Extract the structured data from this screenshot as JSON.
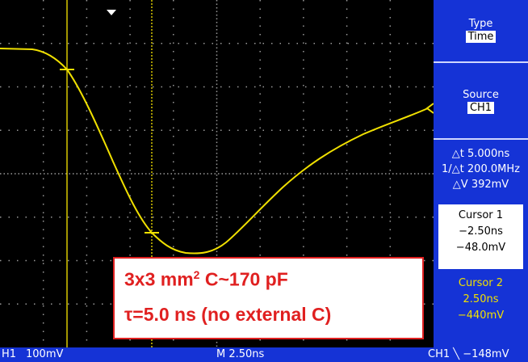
{
  "status_bar": {
    "channel": "H1",
    "scale": "100mV",
    "timebase": "M 2.50ns",
    "trigger": "CH1 ╲ −148mV"
  },
  "menu": {
    "type": {
      "label": "Type",
      "value": "Time"
    },
    "source": {
      "label": "Source",
      "value": "CH1"
    },
    "readouts": [
      "△t 5.000ns",
      "1/△t 200.0MHz",
      "△V 392mV"
    ],
    "cursor1": {
      "label": "Cursor 1",
      "time": "−2.50ns",
      "voltage": "−48.0mV"
    },
    "cursor2": {
      "label": "Cursor 2",
      "time": "2.50ns",
      "voltage": "−440mV"
    }
  },
  "annotation": {
    "line1_start": "3x3 mm",
    "line1_sup": "2",
    "line1_end": " C~170 pF",
    "line2": "τ=5.0 ns (no external C)"
  }
}
